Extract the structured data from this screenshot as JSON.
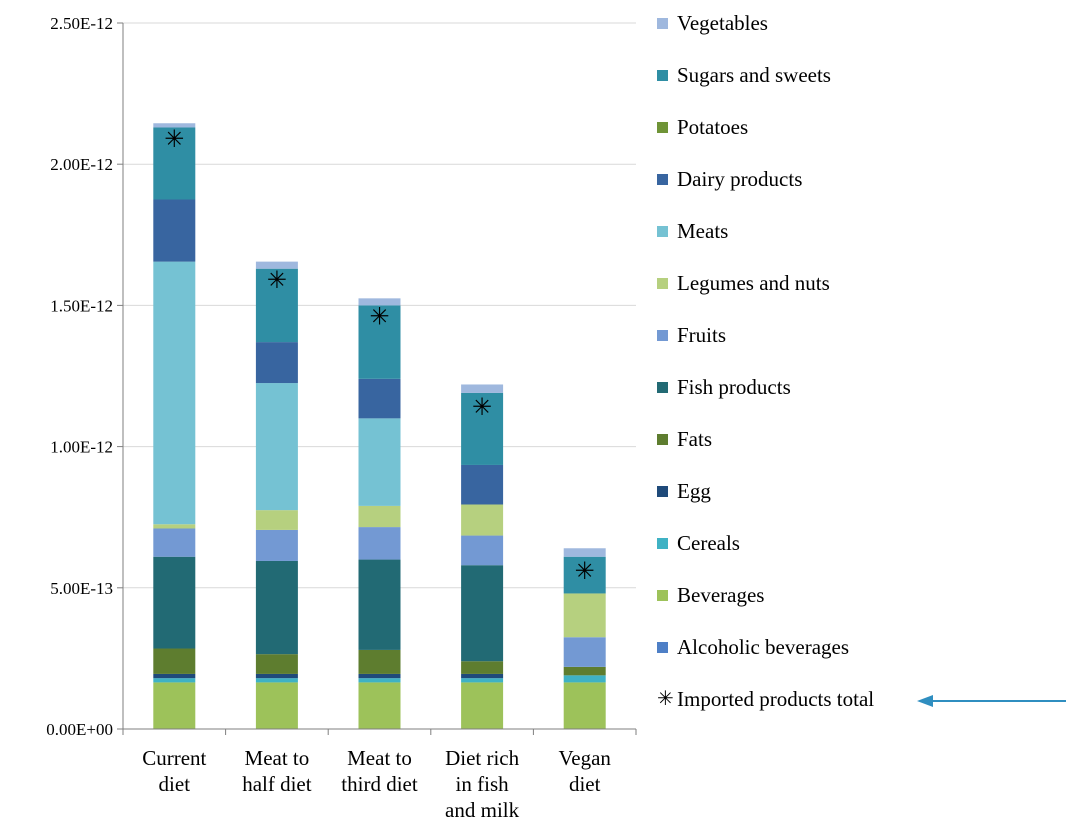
{
  "chart_data": {
    "type": "bar",
    "stacked": true,
    "categories": [
      "Current diet",
      "Meat to half diet",
      "Meat to third diet",
      "Diet rich in fish and milk",
      "Vegan diet"
    ],
    "category_label_lines": [
      [
        "Current",
        "diet"
      ],
      [
        "Meat to",
        "half diet"
      ],
      [
        "Meat to",
        "third diet"
      ],
      [
        "Diet rich",
        "in fish",
        "and milk"
      ],
      [
        "Vegan",
        "diet"
      ]
    ],
    "ylim": [
      0,
      2.5e-12
    ],
    "yticks": [
      {
        "value": 0,
        "label": "0.00E+00"
      },
      {
        "value": 5e-13,
        "label": "5.00E-13"
      },
      {
        "value": 1e-12,
        "label": "1.00E-12"
      },
      {
        "value": 1.5e-12,
        "label": "1.50E-12"
      },
      {
        "value": 2e-12,
        "label": "2.00E-12"
      },
      {
        "value": 2.5e-12,
        "label": "2.50E-12"
      }
    ],
    "grid": true,
    "legend_position": "right",
    "series": [
      {
        "name": "Beverages",
        "color": "#9dc25a",
        "values": [
          1.65e-13,
          1.65e-13,
          1.65e-13,
          1.65e-13,
          1.65e-13
        ]
      },
      {
        "name": "Cereals",
        "color": "#3fb2c4",
        "values": [
          1.5e-14,
          1.5e-14,
          1.5e-14,
          1.5e-14,
          2.5e-14
        ]
      },
      {
        "name": "Egg",
        "color": "#1f4a7a",
        "values": [
          1.5e-14,
          1.5e-14,
          1.5e-14,
          1.5e-14,
          0
        ]
      },
      {
        "name": "Fats",
        "color": "#5e7d2f",
        "values": [
          9e-14,
          7e-14,
          8.5e-14,
          4.5e-14,
          3e-14
        ]
      },
      {
        "name": "Fish products",
        "color": "#226a74",
        "values": [
          3.25e-13,
          3.3e-13,
          3.2e-13,
          3.4e-13,
          0
        ]
      },
      {
        "name": "Fruits",
        "color": "#7399d3",
        "values": [
          1e-13,
          1.1e-13,
          1.15e-13,
          1.05e-13,
          1.05e-13
        ]
      },
      {
        "name": "Legumes and nuts",
        "color": "#b6d07f",
        "values": [
          1.5e-14,
          7e-14,
          7.5e-14,
          1.1e-13,
          1.55e-13
        ]
      },
      {
        "name": "Meats",
        "color": "#75c2d3",
        "values": [
          9.3e-13,
          4.5e-13,
          3.1e-13,
          0,
          0
        ]
      },
      {
        "name": "Dairy products",
        "color": "#3865a0",
        "values": [
          2.2e-13,
          1.45e-13,
          1.4e-13,
          1.4e-13,
          0
        ]
      },
      {
        "name": "Potatoes",
        "color": "#6f9437",
        "values": [
          0,
          0,
          0,
          0,
          0
        ]
      },
      {
        "name": "Sugars and sweets",
        "color": "#2f8ea4",
        "values": [
          2.55e-13,
          2.6e-13,
          2.6e-13,
          2.55e-13,
          1.3e-13
        ]
      },
      {
        "name": "Alcoholic beverages",
        "color": "#4e7fc6",
        "values": [
          0,
          0,
          0,
          0,
          0
        ]
      },
      {
        "name": "Vegetables",
        "color": "#9fb8de",
        "values": [
          1.5e-14,
          2.5e-14,
          2.5e-14,
          3e-14,
          3e-14
        ]
      }
    ],
    "marker_series": {
      "name": "Imported products total",
      "symbol": "✳",
      "values": [
        2.09e-12,
        1.59e-12,
        1.46e-12,
        1.14e-12,
        5.6e-13
      ]
    }
  },
  "legend": [
    {
      "label": "Vegetables",
      "color": "#9fb8de"
    },
    {
      "label": "Sugars and sweets",
      "color": "#2f8ea4"
    },
    {
      "label": "Potatoes",
      "color": "#6f9437"
    },
    {
      "label": "Dairy products",
      "color": "#3865a0"
    },
    {
      "label": "Meats",
      "color": "#75c2d3"
    },
    {
      "label": "Legumes and nuts",
      "color": "#b6d07f"
    },
    {
      "label": "Fruits",
      "color": "#7399d3"
    },
    {
      "label": "Fish products",
      "color": "#226a74"
    },
    {
      "label": "Fats",
      "color": "#5e7d2f"
    },
    {
      "label": "Egg",
      "color": "#1f4a7a"
    },
    {
      "label": "Cereals",
      "color": "#3fb2c4"
    },
    {
      "label": "Beverages",
      "color": "#9dc25a"
    },
    {
      "label": "Alcoholic beverages",
      "color": "#4e7fc6"
    }
  ],
  "legend_marker": {
    "symbol": "✳",
    "label": "Imported products total"
  },
  "pointer_arrow": {
    "icon": "arrow-left-icon",
    "color": "#2f8ec0"
  }
}
